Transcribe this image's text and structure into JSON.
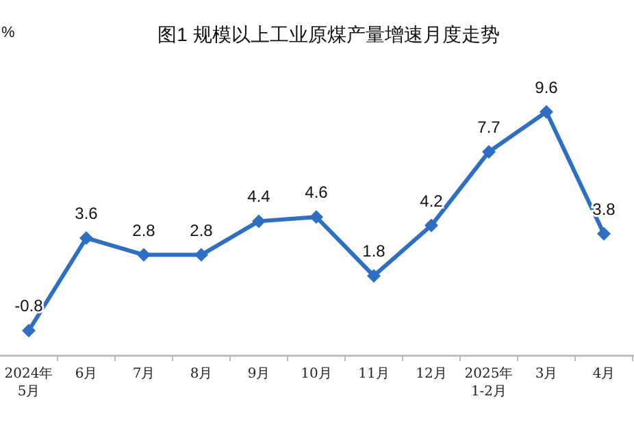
{
  "chart_data": {
    "type": "line",
    "title": "图1  规模以上工业原煤产量增速月度走势",
    "ylabel": "%",
    "categories": [
      "2024年\n5月",
      "6月",
      "7月",
      "8月",
      "9月",
      "10月",
      "11月",
      "12月",
      "2025年\n1-2月",
      "3月",
      "4月"
    ],
    "series": [
      {
        "color": "#2e6fc4",
        "values": [
          -0.8,
          3.6,
          2.8,
          2.8,
          4.4,
          4.6,
          1.8,
          4.2,
          7.7,
          9.6,
          3.8
        ]
      }
    ],
    "tick_labels": "x",
    "data_labels": true,
    "marker": "diamond",
    "line_style": "solid"
  }
}
